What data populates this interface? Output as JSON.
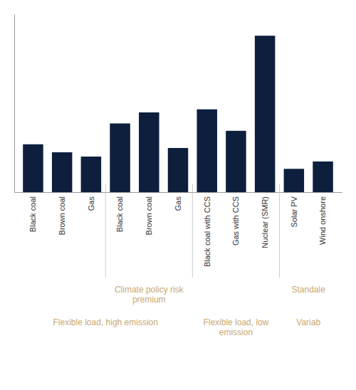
{
  "chart_data": {
    "type": "bar",
    "categories": [
      "Black coal",
      "Brown coal",
      "Gas",
      "Black coal",
      "Brown coal",
      "Gas",
      "Black coal with CCS",
      "Gas with CCS",
      "Nuclear (SMR)",
      "Solar PV",
      "Wind onshore"
    ],
    "values": [
      78,
      65,
      58,
      112,
      130,
      72,
      135,
      100,
      255,
      38,
      50
    ],
    "color": "#0d1f3c",
    "ylim": [
      0,
      290
    ],
    "yticks": [],
    "grid": false,
    "tick_labels": "x",
    "annotations": [
      {
        "text": "Climate policy risk\npremium",
        "color": "#c8a870"
      },
      {
        "text": "Standale",
        "color": "#c8a870"
      },
      {
        "text": "Flexible load, high emission",
        "color": "#c8a870"
      },
      {
        "text": "Flexible load, low\nemission",
        "color": "#c8a870"
      },
      {
        "text": "Variab",
        "color": "#c8a870"
      }
    ]
  }
}
